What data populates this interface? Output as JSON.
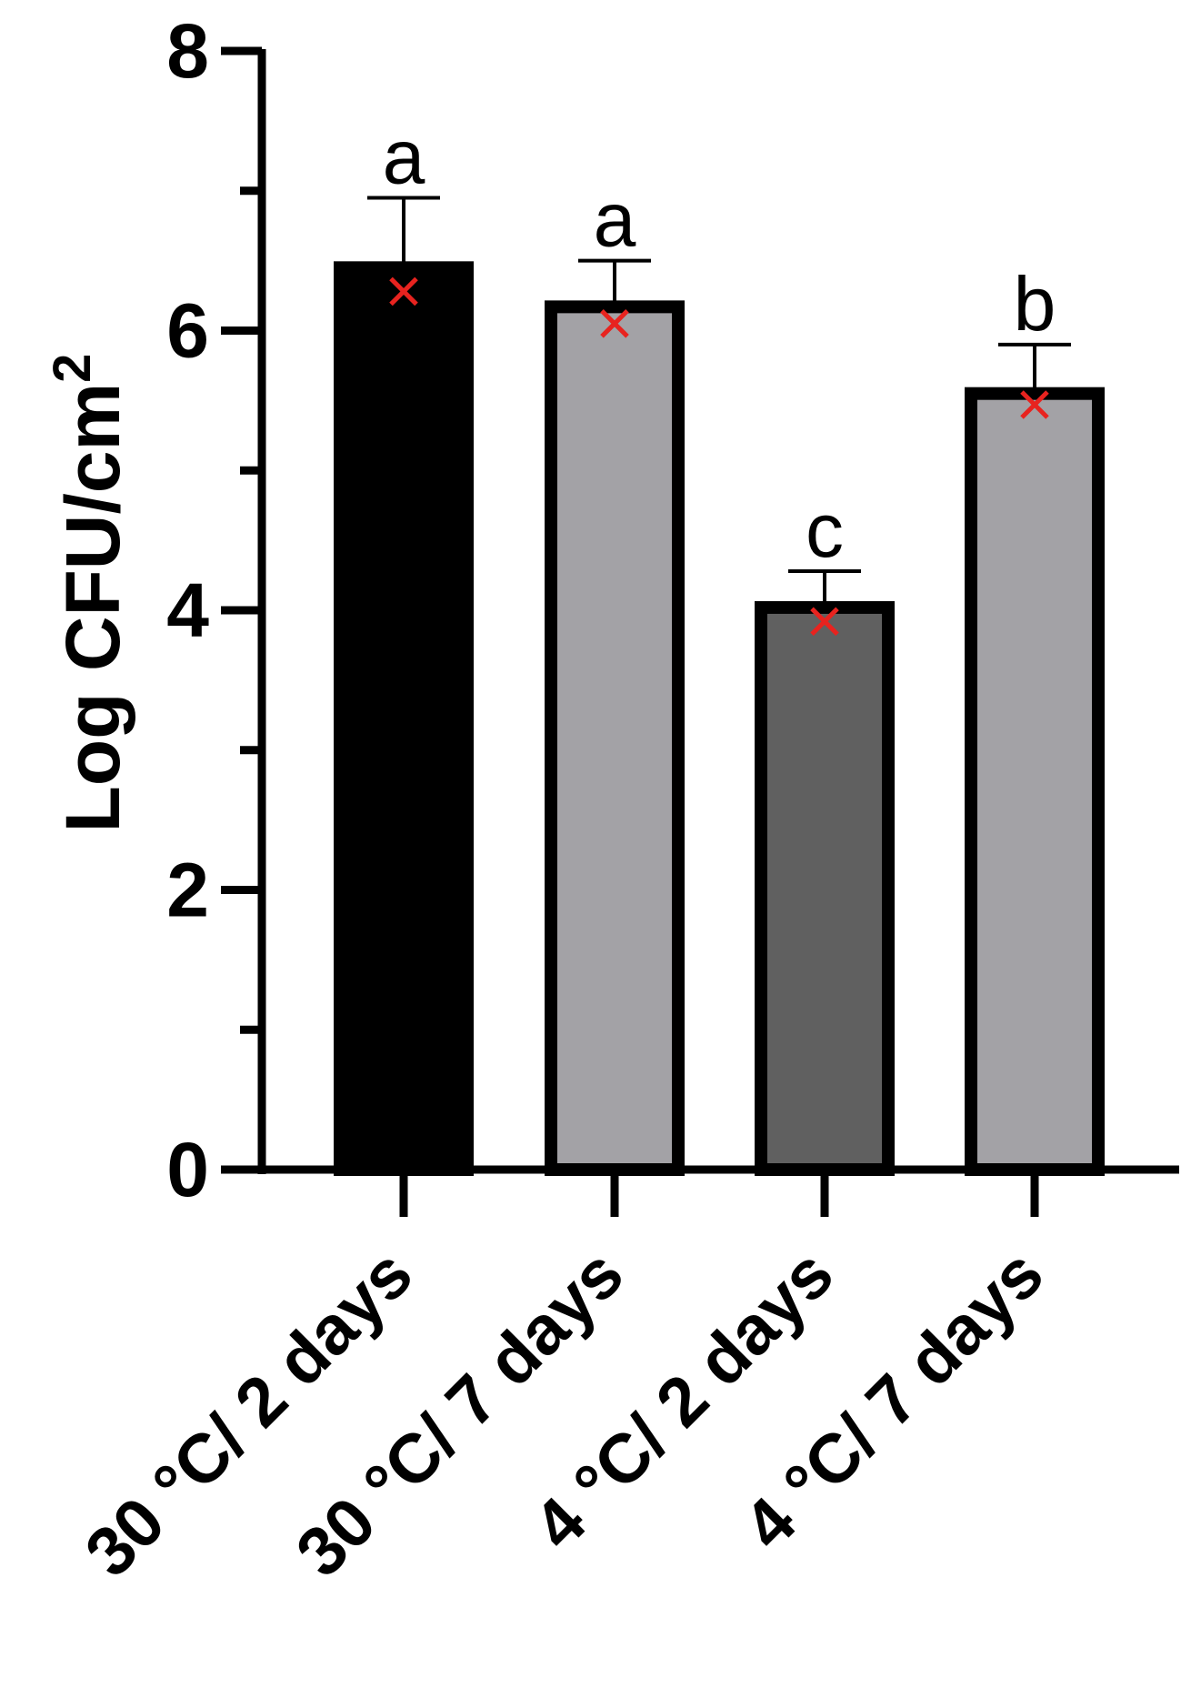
{
  "chart_data": {
    "type": "bar",
    "title": "",
    "xlabel": "",
    "ylabel": "Log CFU/cm",
    "ylabel_superscript": "2",
    "ylim": [
      0,
      8
    ],
    "major_ticks": [
      0,
      2,
      4,
      6,
      8
    ],
    "minor_ticks": [
      1,
      3,
      5,
      7
    ],
    "tick_labels": [
      "0",
      "2",
      "4",
      "6",
      "8"
    ],
    "grid": false,
    "categories": [
      "30 °C/ 2 days",
      "30 °C/ 7 days",
      "4 °C/ 2 days",
      "4 °C/ 7 days"
    ],
    "values": [
      6.45,
      6.17,
      4.02,
      5.55
    ],
    "error_upper": [
      6.95,
      6.5,
      4.28,
      5.9
    ],
    "markers": [
      6.28,
      6.05,
      3.92,
      5.47
    ],
    "significance_letters": [
      "a",
      "a",
      "c",
      "b"
    ],
    "bar_colors": [
      "#000000",
      "#a3a2a6",
      "#606060",
      "#a3a2a6"
    ],
    "marker_color": "#e8231f"
  }
}
